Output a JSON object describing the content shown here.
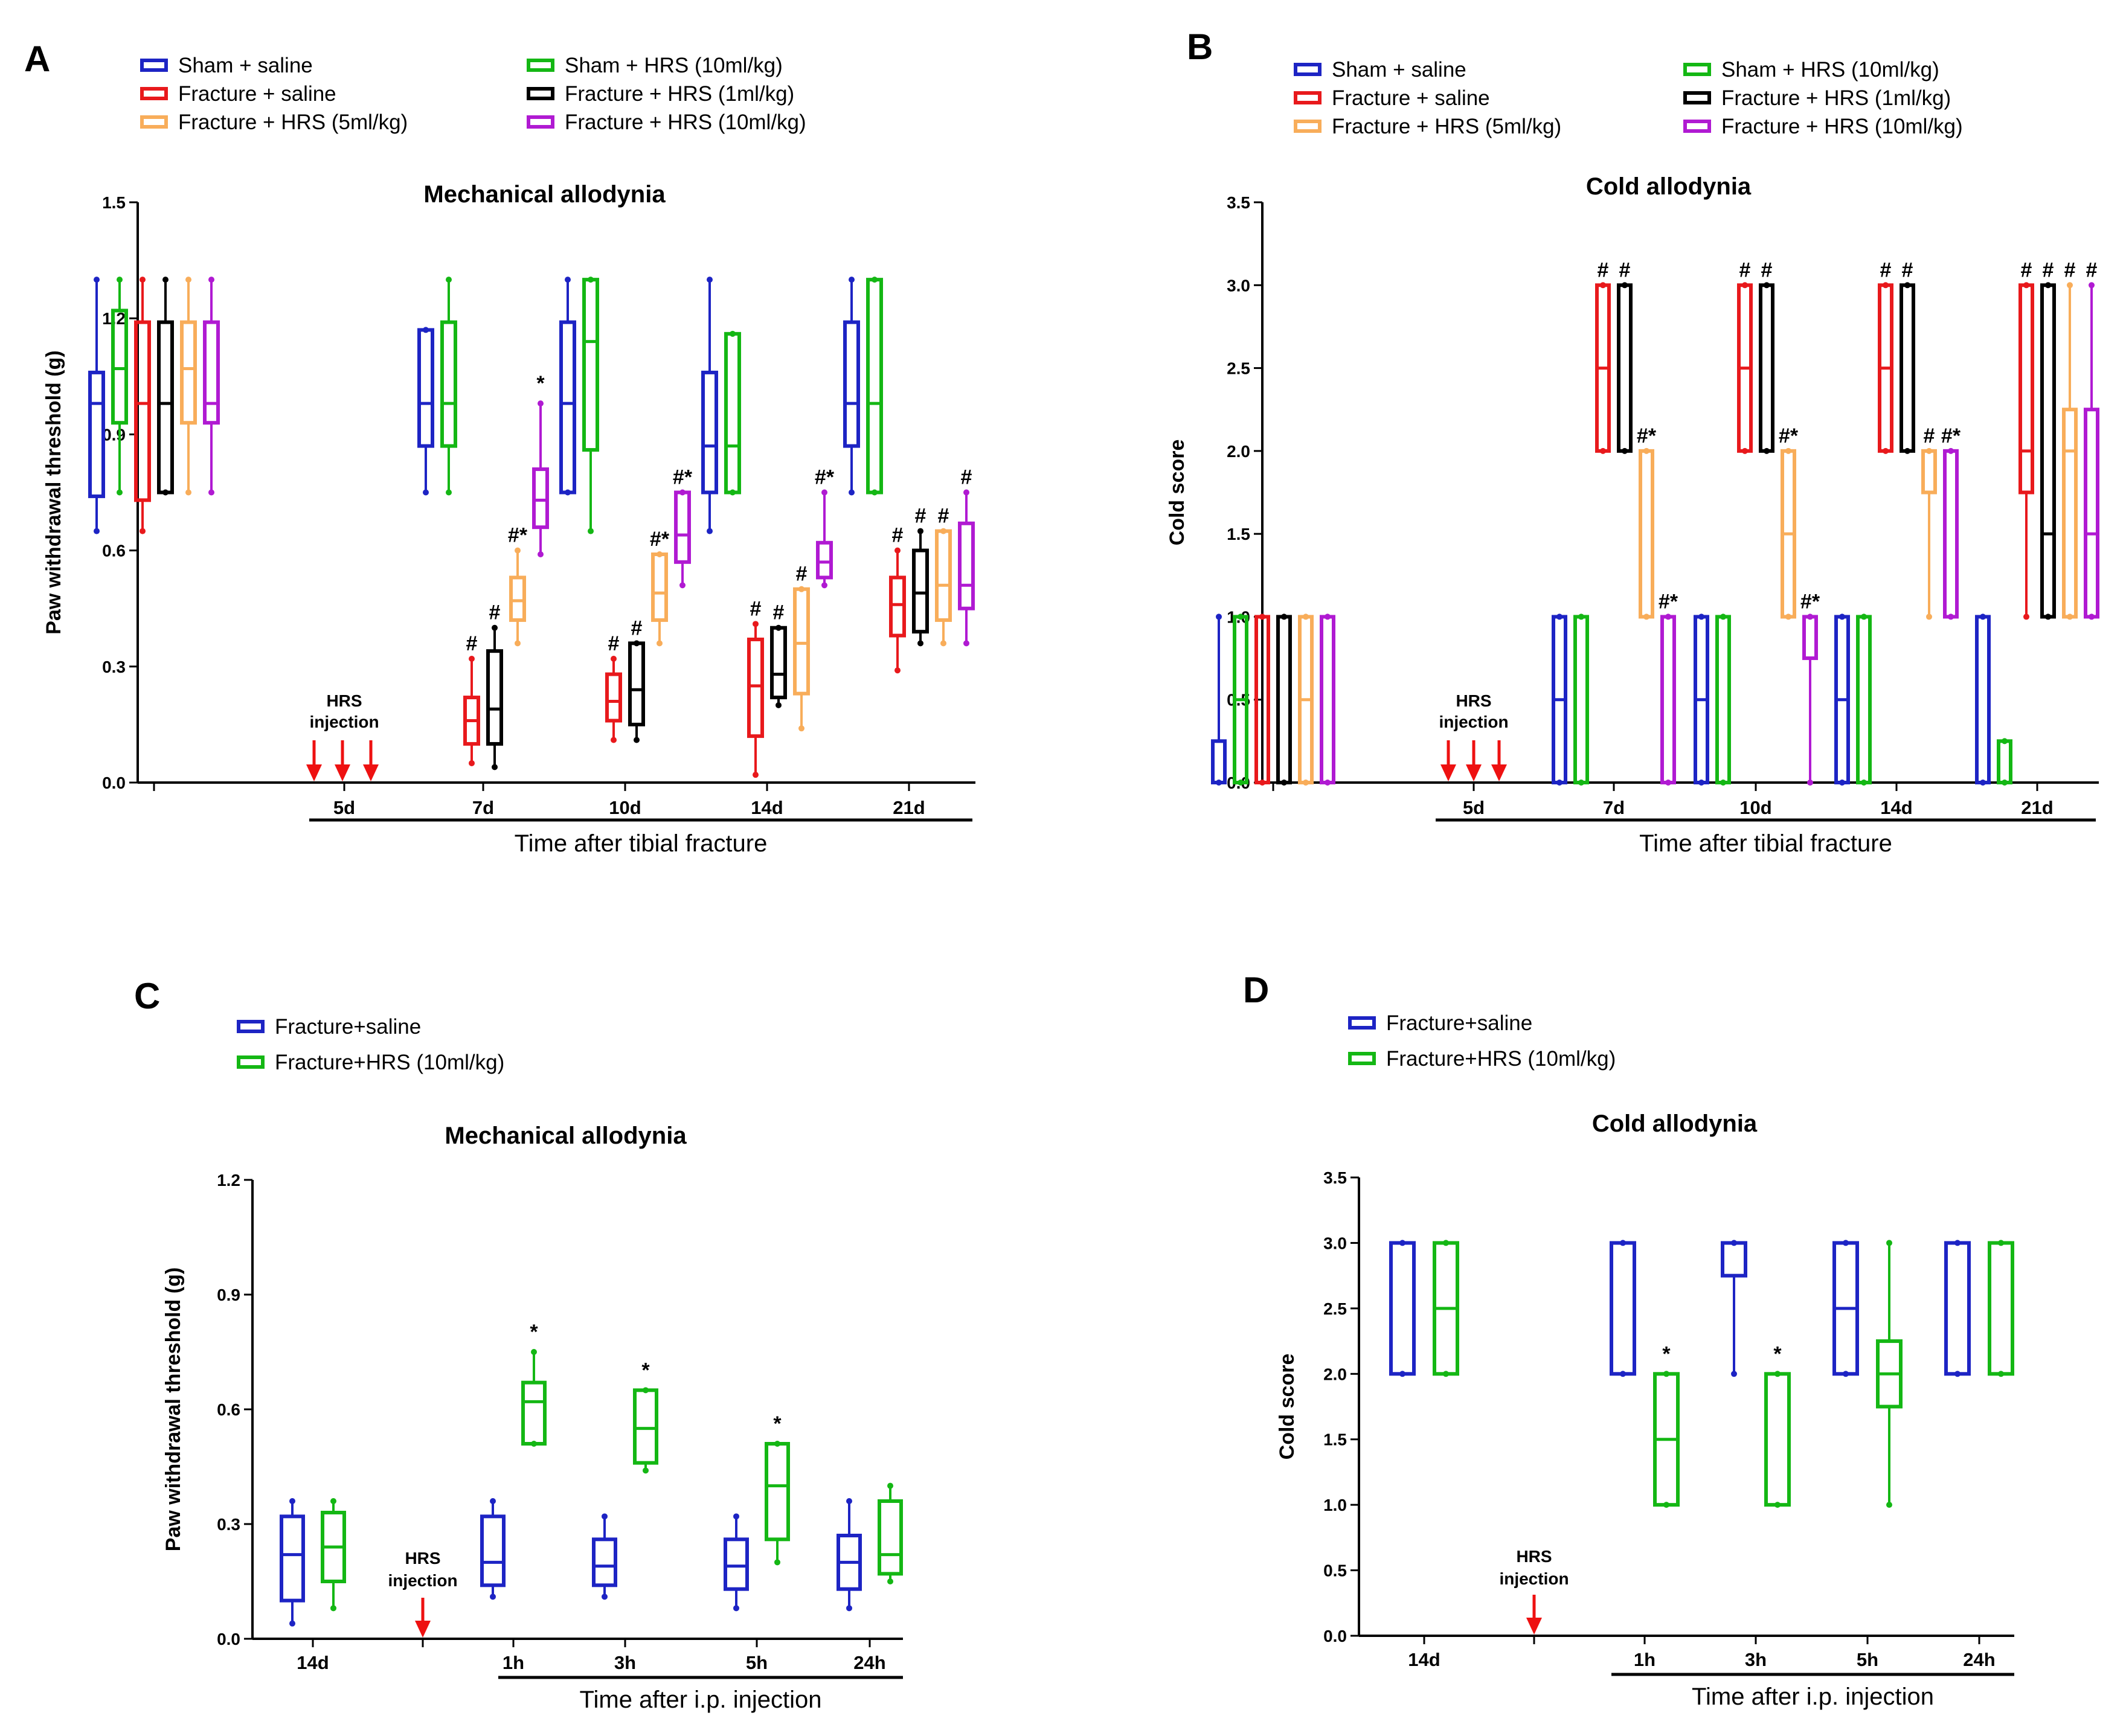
{
  "colors": {
    "blue": "#1d24c4",
    "green": "#14b714",
    "red": "#e8191c",
    "orange": "#f8ad5a",
    "black": "#000000",
    "purple": "#b01ad2",
    "arrow": "#ee1111"
  },
  "legend_groups": [
    {
      "label": "Sham + saline",
      "color": "blue"
    },
    {
      "label": "Fracture + saline",
      "color": "red"
    },
    {
      "label": "Fracture + HRS (5ml/kg)",
      "color": "orange"
    },
    {
      "label": "Sham + HRS (10ml/kg)",
      "color": "green"
    },
    {
      "label": "Fracture + HRS (1ml/kg)",
      "color": "black"
    },
    {
      "label": "Fracture + HRS (10ml/kg)",
      "color": "purple"
    }
  ],
  "legend_groups_cd": [
    {
      "label": "Fracture+saline",
      "color": "blue"
    },
    {
      "label": "Fracture+HRS (10ml/kg)",
      "color": "green"
    }
  ],
  "chart_data": [
    {
      "panel": "A",
      "type": "box",
      "title": "Mechanical allodynia",
      "ylabel": "Paw withdrawal threshold (g)",
      "xlabel": "Time after tibial fracture",
      "ylim": [
        0,
        1.5
      ],
      "yticks": [
        "0.0",
        "0.3",
        "0.6",
        "0.9",
        "1.2",
        "1.5"
      ],
      "injection_label": [
        "HRS",
        "injection"
      ],
      "series_order": [
        "blue",
        "green",
        "red",
        "black",
        "orange",
        "purple"
      ],
      "groups": [
        {
          "label": "",
          "series": {
            "blue": [
              0.65,
              0.74,
              0.98,
              1.06,
              1.3
            ],
            "green": [
              0.75,
              0.93,
              1.07,
              1.22,
              1.3
            ],
            "red": [
              0.65,
              0.73,
              0.98,
              1.19,
              1.3
            ],
            "black": [
              0.75,
              0.75,
              0.98,
              1.19,
              1.3
            ],
            "orange": [
              0.75,
              0.93,
              1.07,
              1.19,
              1.3
            ],
            "purple": [
              0.75,
              0.93,
              0.98,
              1.19,
              1.3
            ]
          }
        },
        {
          "label": "5d",
          "series": {}
        },
        {
          "label": "7d",
          "series": {
            "blue": [
              0.75,
              0.87,
              0.98,
              1.17,
              1.17
            ],
            "green": [
              0.75,
              0.87,
              0.98,
              1.19,
              1.3
            ],
            "red": [
              0.05,
              0.1,
              0.16,
              0.22,
              0.32
            ],
            "black": [
              0.04,
              0.1,
              0.19,
              0.34,
              0.4
            ],
            "orange": [
              0.36,
              0.42,
              0.47,
              0.53,
              0.6
            ],
            "purple": [
              0.59,
              0.66,
              0.73,
              0.81,
              0.98
            ]
          },
          "marks": {
            "red": "#",
            "black": "#",
            "orange": "#*",
            "purple": "*"
          }
        },
        {
          "label": "10d",
          "series": {
            "blue": [
              0.75,
              0.75,
              0.98,
              1.19,
              1.3
            ],
            "green": [
              0.65,
              0.86,
              1.14,
              1.3,
              1.3
            ],
            "red": [
              0.11,
              0.16,
              0.21,
              0.28,
              0.32
            ],
            "black": [
              0.11,
              0.15,
              0.24,
              0.36,
              0.36
            ],
            "orange": [
              0.36,
              0.42,
              0.49,
              0.59,
              0.59
            ],
            "purple": [
              0.51,
              0.57,
              0.64,
              0.75,
              0.75
            ]
          },
          "marks": {
            "red": "#",
            "black": "#",
            "orange": "#*",
            "purple": "#*"
          }
        },
        {
          "label": "14d",
          "series": {
            "blue": [
              0.65,
              0.75,
              0.87,
              1.06,
              1.3
            ],
            "green": [
              0.75,
              0.75,
              0.87,
              1.16,
              1.16
            ],
            "red": [
              0.02,
              0.12,
              0.25,
              0.37,
              0.41
            ],
            "black": [
              0.2,
              0.22,
              0.28,
              0.4,
              0.4
            ],
            "orange": [
              0.14,
              0.23,
              0.36,
              0.5,
              0.5
            ],
            "purple": [
              0.51,
              0.53,
              0.57,
              0.62,
              0.75
            ]
          },
          "marks": {
            "red": "#",
            "black": "#",
            "orange": "#",
            "purple": "#*"
          }
        },
        {
          "label": "21d",
          "series": {
            "blue": [
              0.75,
              0.87,
              0.98,
              1.19,
              1.3
            ],
            "green": [
              0.75,
              0.75,
              0.98,
              1.3,
              1.3
            ],
            "red": [
              0.29,
              0.38,
              0.46,
              0.53,
              0.6
            ],
            "black": [
              0.36,
              0.39,
              0.49,
              0.6,
              0.65
            ],
            "orange": [
              0.36,
              0.42,
              0.51,
              0.65,
              0.65
            ],
            "purple": [
              0.36,
              0.45,
              0.51,
              0.67,
              0.75
            ]
          },
          "marks": {
            "red": "#",
            "black": "#",
            "orange": "#",
            "purple": "#"
          }
        }
      ]
    },
    {
      "panel": "B",
      "type": "box",
      "title": "Cold allodynia",
      "ylabel": "Cold score",
      "xlabel": "Time after tibial fracture",
      "ylim": [
        0,
        3.5
      ],
      "yticks": [
        "0.0",
        "0.5",
        "1.0",
        "1.5",
        "2.0",
        "2.5",
        "3.0",
        "3.5"
      ],
      "injection_label": [
        "HRS",
        "injection"
      ],
      "series_order": [
        "blue",
        "green",
        "red",
        "black",
        "orange",
        "purple"
      ],
      "groups": [
        {
          "label": "",
          "series": {
            "blue": [
              0,
              0,
              0,
              0.25,
              1
            ],
            "green": [
              0,
              0,
              0.5,
              1,
              1
            ],
            "red": [
              0,
              0,
              0,
              1,
              1
            ],
            "black": [
              0,
              0,
              0,
              1,
              1
            ],
            "orange": [
              0,
              0,
              0.5,
              1,
              1
            ],
            "purple": [
              0,
              0,
              0,
              1,
              1
            ]
          }
        },
        {
          "label": "5d",
          "series": {}
        },
        {
          "label": "7d",
          "series": {
            "blue": [
              0,
              0,
              0.5,
              1,
              1
            ],
            "green": [
              0,
              0,
              0,
              1,
              1
            ],
            "red": [
              2,
              2,
              2.5,
              3,
              3
            ],
            "black": [
              2,
              2,
              3,
              3,
              3
            ],
            "orange": [
              1,
              1,
              2,
              2,
              2
            ],
            "purple": [
              0,
              0,
              1,
              1,
              1
            ]
          },
          "marks": {
            "red": "#",
            "black": "#",
            "orange": "#*",
            "purple": "#*"
          }
        },
        {
          "label": "10d",
          "series": {
            "blue": [
              0,
              0,
              0.5,
              1,
              1
            ],
            "green": [
              0,
              0,
              0,
              1,
              1
            ],
            "red": [
              2,
              2,
              2.5,
              3,
              3
            ],
            "black": [
              2,
              2,
              3,
              3,
              3
            ],
            "orange": [
              1,
              1,
              1.5,
              2,
              2
            ],
            "purple": [
              0,
              0.75,
              1,
              1,
              1
            ]
          },
          "marks": {
            "red": "#",
            "black": "#",
            "orange": "#*",
            "purple": "#*"
          }
        },
        {
          "label": "14d",
          "series": {
            "blue": [
              0,
              0,
              0.5,
              1,
              1
            ],
            "green": [
              0,
              0,
              0,
              1,
              1
            ],
            "red": [
              2,
              2,
              2.5,
              3,
              3
            ],
            "black": [
              2,
              2,
              2,
              3,
              3
            ],
            "orange": [
              1,
              1.75,
              2,
              2,
              2
            ],
            "purple": [
              1,
              1,
              1,
              2,
              2
            ]
          },
          "marks": {
            "red": "#",
            "black": "#",
            "orange": "#",
            "purple": "#*"
          }
        },
        {
          "label": "21d",
          "series": {
            "blue": [
              0,
              0,
              0,
              1,
              1
            ],
            "green": [
              0,
              0,
              0,
              0.25,
              0.25
            ],
            "red": [
              1,
              1.75,
              2,
              3,
              3
            ],
            "black": [
              1,
              1,
              1.5,
              3,
              3
            ],
            "orange": [
              1,
              1,
              2,
              2.25,
              3
            ],
            "purple": [
              1,
              1,
              1.5,
              2.25,
              3
            ]
          },
          "marks": {
            "red": "#",
            "black": "#",
            "orange": "#",
            "purple": "#"
          }
        }
      ]
    },
    {
      "panel": "C",
      "type": "box",
      "title": "Mechanical allodynia",
      "ylabel": "Paw withdrawal threshold (g)",
      "xlabel": "Time after i.p. injection",
      "ylim": [
        0,
        1.2
      ],
      "yticks": [
        "0.0",
        "0.3",
        "0.6",
        "0.9",
        "1.2"
      ],
      "injection_label": [
        "HRS",
        "injection"
      ],
      "series_order": [
        "blue",
        "green"
      ],
      "groups": [
        {
          "label": "14d",
          "series": {
            "blue": [
              0.04,
              0.1,
              0.22,
              0.32,
              0.36
            ],
            "green": [
              0.08,
              0.15,
              0.24,
              0.33,
              0.36
            ]
          }
        },
        {
          "label": "",
          "series": {}
        },
        {
          "label": "1h",
          "series": {
            "blue": [
              0.11,
              0.14,
              0.2,
              0.32,
              0.36
            ],
            "green": [
              0.51,
              0.51,
              0.62,
              0.67,
              0.75
            ]
          },
          "marks": {
            "green": "*"
          }
        },
        {
          "label": "3h",
          "series": {
            "blue": [
              0.11,
              0.14,
              0.19,
              0.26,
              0.32
            ],
            "green": [
              0.44,
              0.46,
              0.55,
              0.65,
              0.65
            ]
          },
          "marks": {
            "green": "*"
          }
        },
        {
          "label": "5h",
          "series": {
            "blue": [
              0.08,
              0.13,
              0.19,
              0.26,
              0.32
            ],
            "green": [
              0.2,
              0.26,
              0.4,
              0.51,
              0.51
            ]
          },
          "marks": {
            "green": "*"
          }
        },
        {
          "label": "24h",
          "series": {
            "blue": [
              0.08,
              0.13,
              0.2,
              0.27,
              0.36
            ],
            "green": [
              0.15,
              0.17,
              0.22,
              0.36,
              0.4
            ]
          }
        }
      ]
    },
    {
      "panel": "D",
      "type": "box",
      "title": "Cold allodynia",
      "ylabel": "Cold score",
      "xlabel": "Time after i.p. injection",
      "ylim": [
        0,
        3.5
      ],
      "yticks": [
        "0.0",
        "0.5",
        "1.0",
        "1.5",
        "2.0",
        "2.5",
        "3.0",
        "3.5"
      ],
      "injection_label": [
        "HRS",
        "injection"
      ],
      "series_order": [
        "blue",
        "green"
      ],
      "groups": [
        {
          "label": "14d",
          "series": {
            "blue": [
              2,
              2,
              2,
              3,
              3
            ],
            "green": [
              2,
              2,
              2.5,
              3,
              3
            ]
          }
        },
        {
          "label": "",
          "series": {}
        },
        {
          "label": "1h",
          "series": {
            "blue": [
              2,
              2,
              2,
              3,
              3
            ],
            "green": [
              1,
              1,
              1.5,
              2,
              2
            ]
          },
          "marks": {
            "green": "*"
          }
        },
        {
          "label": "3h",
          "series": {
            "blue": [
              2,
              2.75,
              3,
              3,
              3
            ],
            "green": [
              1,
              1,
              1,
              2,
              2
            ]
          },
          "marks": {
            "green": "*"
          }
        },
        {
          "label": "5h",
          "series": {
            "blue": [
              2,
              2,
              2.5,
              3,
              3
            ],
            "green": [
              1,
              1.75,
              2,
              2.25,
              3
            ]
          }
        },
        {
          "label": "24h",
          "series": {
            "blue": [
              2,
              2,
              2,
              3,
              3
            ],
            "green": [
              2,
              2,
              2,
              3,
              3
            ]
          }
        }
      ]
    }
  ]
}
